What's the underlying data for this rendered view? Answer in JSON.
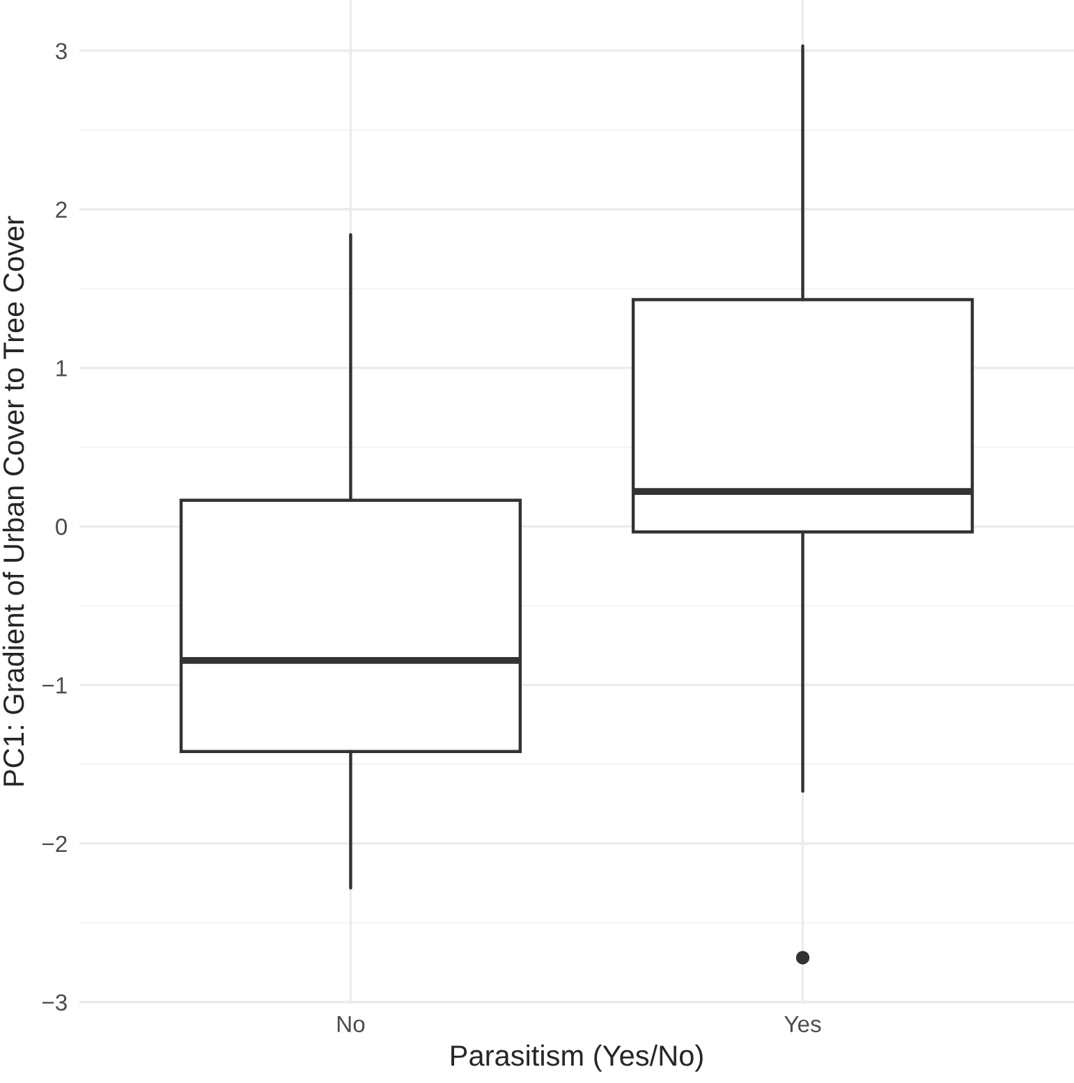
{
  "chart_data": {
    "type": "box",
    "xlabel": "Parasitism (Yes/No)",
    "ylabel": "PC1: Gradient of Urban Cover to Tree Cover",
    "categories": [
      "No",
      "Yes"
    ],
    "boxes": [
      {
        "low": -2.28,
        "q1": -1.42,
        "median": -0.845,
        "q3": 0.165,
        "high": 1.84
      },
      {
        "low": -1.67,
        "q1": -0.035,
        "median": 0.22,
        "q3": 1.43,
        "high": 3.03,
        "outliers": [
          -2.72
        ]
      }
    ],
    "ylim": [
      -3.01,
      3.32
    ],
    "yticks": [
      {
        "value": -3,
        "label": "−3"
      },
      {
        "value": -2,
        "label": "−2"
      },
      {
        "value": -1,
        "label": "−1"
      },
      0,
      1,
      2,
      3
    ],
    "grid": true
  }
}
